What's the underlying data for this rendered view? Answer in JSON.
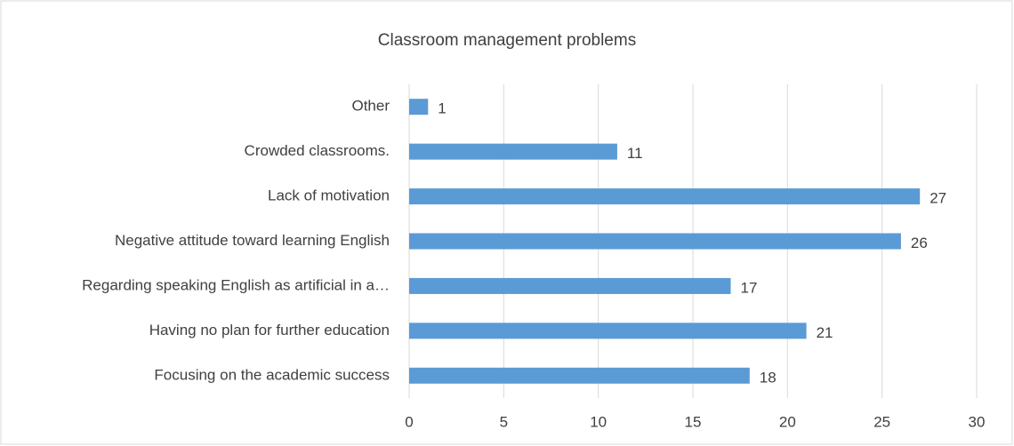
{
  "chart_data": {
    "type": "bar",
    "orientation": "horizontal",
    "title": "Classroom management problems",
    "categories": [
      "Other",
      "Crowded classrooms.",
      "Lack of motivation",
      "Negative attitude toward learning English",
      "Regarding speaking English as artificial in a…",
      "Having no plan for further education",
      "Focusing on the academic success"
    ],
    "values": [
      1,
      11,
      27,
      26,
      17,
      21,
      18
    ],
    "color": "#5b9bd5",
    "xlim": [
      0,
      30
    ],
    "xticks": [
      0,
      5,
      10,
      15,
      20,
      25,
      30
    ],
    "grid": true
  }
}
